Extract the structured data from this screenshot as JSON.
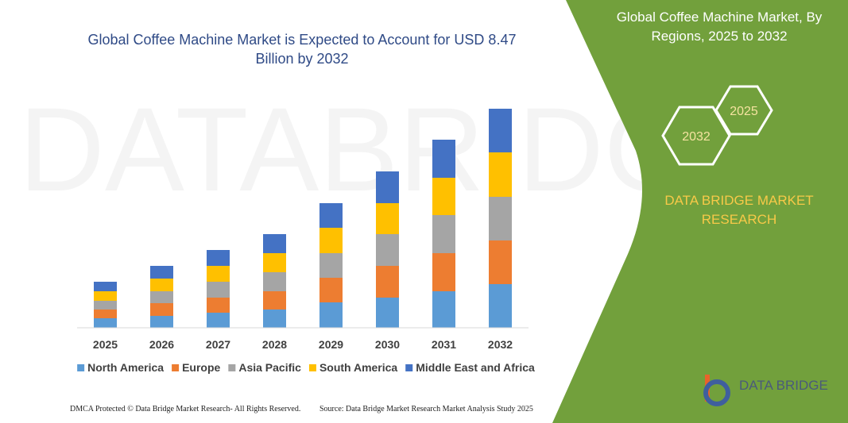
{
  "chart_data": {
    "type": "stacked_bar",
    "title": "Global Coffee Machine Market is Expected to Account for USD 8.47 Billion by 2032",
    "categories": [
      "2025",
      "2026",
      "2027",
      "2028",
      "2029",
      "2030",
      "2031",
      "2032"
    ],
    "series": [
      {
        "name": "North America",
        "color": "#5b9bd5",
        "values": [
          12,
          15,
          19,
          23,
          32,
          38,
          46,
          55
        ]
      },
      {
        "name": "Europe",
        "color": "#ed7d31",
        "values": [
          11,
          16,
          19,
          23,
          31,
          40,
          48,
          55
        ]
      },
      {
        "name": "Asia Pacific",
        "color": "#a5a5a5",
        "values": [
          11,
          15,
          20,
          24,
          31,
          40,
          48,
          55
        ]
      },
      {
        "name": "South America",
        "color": "#ffc000",
        "values": [
          12,
          16,
          20,
          24,
          32,
          39,
          47,
          56
        ]
      },
      {
        "name": "Middle East and Africa",
        "color": "#4472c4",
        "values": [
          12,
          16,
          20,
          24,
          31,
          40,
          48,
          55
        ]
      }
    ],
    "ylim": [
      0,
      300
    ],
    "grid": false,
    "legend": "bottom"
  },
  "side_panel": {
    "title": "Global Coffee Machine Market, By Regions, 2025 to 2032",
    "hexagons": [
      "2025",
      "2032"
    ],
    "brand": "DATA BRIDGE MARKET RESEARCH",
    "logo": "DATA BRIDGE"
  },
  "footer": {
    "left": "DMCA Protected © Data Bridge Market Research- All Rights Reserved.",
    "right": "Source: Data Bridge Market Research Market Analysis Study 2025"
  }
}
